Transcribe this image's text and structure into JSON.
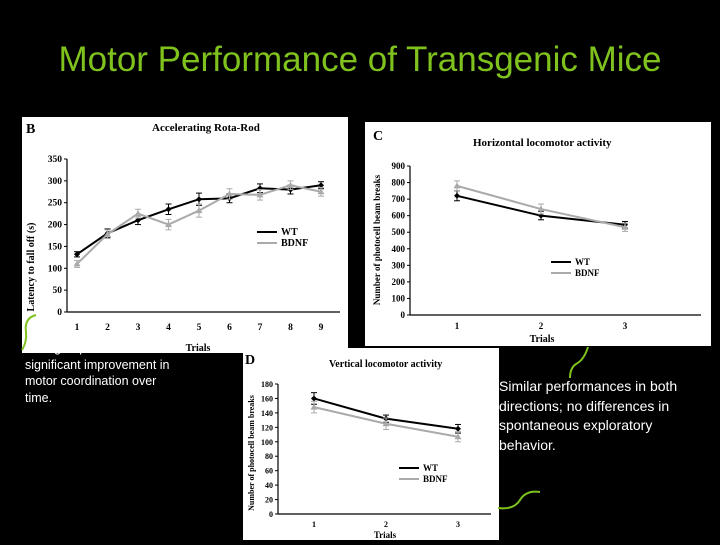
{
  "slide": {
    "title": "Motor Performance of Transgenic Mice",
    "note_left": "Both groups showed a significant improvement in motor coordination over time.",
    "note_right": "Similar performances in both directions; no differences in spontaneous exploratory behavior.",
    "accent_color": "#7fc21e"
  },
  "chart_data": [
    {
      "panel": "B",
      "type": "line",
      "title": "Accelerating Rota-Rod",
      "xlabel": "Trials",
      "ylabel": "Latency to fall off (s)",
      "x": [
        1,
        2,
        3,
        4,
        5,
        6,
        7,
        8,
        9
      ],
      "xticks": [
        "1",
        "2",
        "3",
        "4",
        "5",
        "6",
        "7",
        "8",
        "9"
      ],
      "yticks": [
        "0",
        "50",
        "100",
        "150",
        "200",
        "250",
        "300",
        "350"
      ],
      "ylim": [
        0,
        350
      ],
      "legend": "center-right",
      "series": [
        {
          "name": "WT",
          "color": "#000000",
          "values": [
            132,
            180,
            210,
            235,
            258,
            260,
            283,
            280,
            290
          ],
          "errors": [
            6,
            10,
            10,
            12,
            14,
            10,
            10,
            10,
            8
          ]
        },
        {
          "name": "BDNF",
          "color": "#aaaaaa",
          "values": [
            110,
            178,
            225,
            200,
            232,
            270,
            268,
            290,
            275
          ],
          "errors": [
            8,
            10,
            10,
            12,
            15,
            12,
            12,
            10,
            10
          ]
        }
      ]
    },
    {
      "panel": "C",
      "type": "line",
      "title": "Horizontal locomotor activity",
      "xlabel": "Trials",
      "ylabel": "Number of photocell beam breaks",
      "x": [
        1,
        2,
        3
      ],
      "xticks": [
        "1",
        "2",
        "3"
      ],
      "yticks": [
        "0",
        "100",
        "200",
        "300",
        "400",
        "500",
        "600",
        "700",
        "800",
        "900"
      ],
      "ylim": [
        0,
        900
      ],
      "legend": "center-right",
      "series": [
        {
          "name": "WT",
          "color": "#000000",
          "values": [
            720,
            600,
            545
          ],
          "errors": [
            30,
            25,
            20
          ]
        },
        {
          "name": "BDNF",
          "color": "#aaaaaa",
          "values": [
            780,
            640,
            530
          ],
          "errors": [
            30,
            30,
            25
          ]
        }
      ]
    },
    {
      "panel": "D",
      "type": "line",
      "title": "Vertical locomotor activity",
      "xlabel": "Trials",
      "ylabel": "Number of photocell beam breaks",
      "x": [
        1,
        2,
        3
      ],
      "xticks": [
        "1",
        "2",
        "3"
      ],
      "yticks": [
        "0",
        "20",
        "40",
        "60",
        "80",
        "100",
        "120",
        "140",
        "160",
        "180"
      ],
      "ylim": [
        0,
        180
      ],
      "legend": "center-left",
      "series": [
        {
          "name": "WT",
          "color": "#000000",
          "values": [
            160,
            132,
            118
          ],
          "errors": [
            8,
            5,
            6
          ]
        },
        {
          "name": "BDNF",
          "color": "#aaaaaa",
          "values": [
            148,
            125,
            107
          ],
          "errors": [
            8,
            8,
            7
          ]
        }
      ]
    }
  ]
}
